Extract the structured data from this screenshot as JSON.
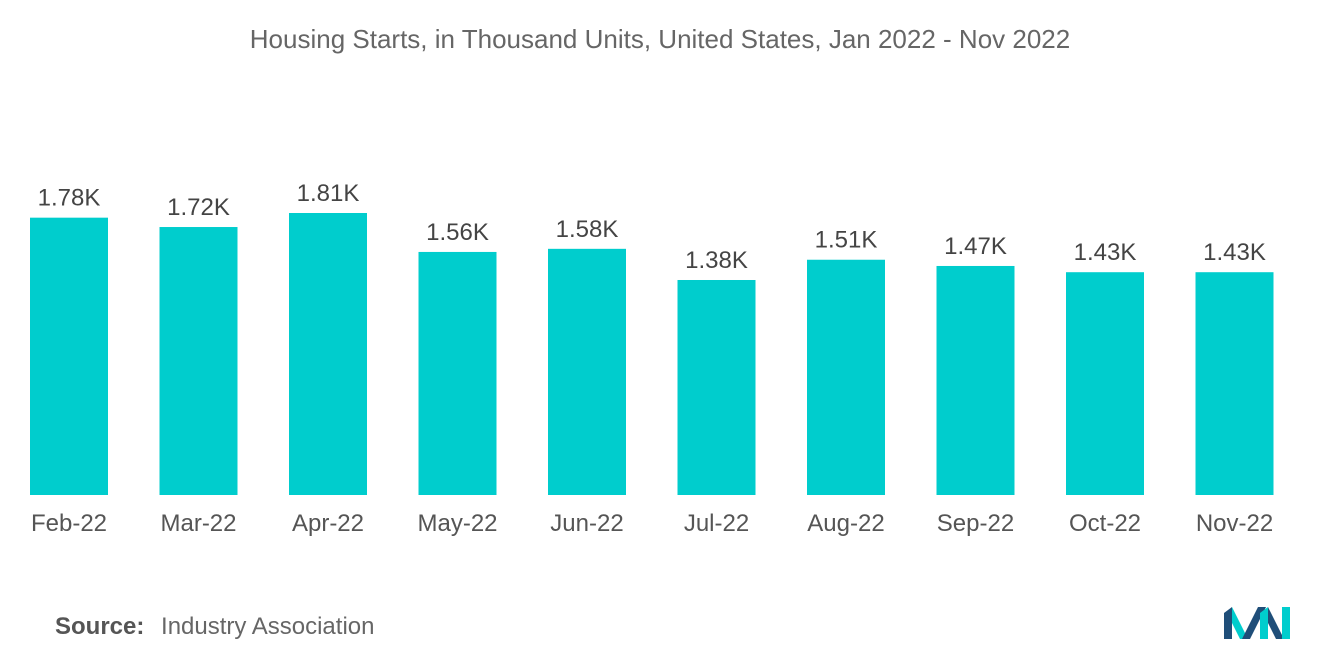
{
  "title": "Housing Starts, in Thousand Units, United States, Jan 2022 - Nov 2022",
  "source_label": "Source:",
  "source_text": "Industry Association",
  "colors": {
    "bar": "#00CDCD",
    "text": "#555555",
    "logo_dark": "#1F4E79",
    "logo_teal": "#00CDCD"
  },
  "chart_data": {
    "type": "bar",
    "title": "Housing Starts, in Thousand Units, United States, Jan 2022 - Nov 2022",
    "categories": [
      "Feb-22",
      "Mar-22",
      "Apr-22",
      "May-22",
      "Jun-22",
      "Jul-22",
      "Aug-22",
      "Sep-22",
      "Oct-22",
      "Nov-22"
    ],
    "values": [
      1.78,
      1.72,
      1.81,
      1.56,
      1.58,
      1.38,
      1.51,
      1.47,
      1.43,
      1.43
    ],
    "labels": [
      "1.78K",
      "1.72K",
      "1.81K",
      "1.56K",
      "1.58K",
      "1.38K",
      "1.51K",
      "1.47K",
      "1.43K",
      "1.43K"
    ],
    "xlabel": "",
    "ylabel": "",
    "ylim": [
      0,
      1.81
    ],
    "grid": false,
    "legend": "none"
  }
}
